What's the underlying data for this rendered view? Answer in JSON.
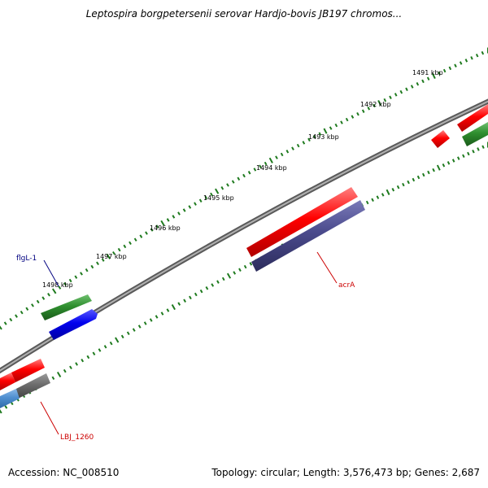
{
  "title": "Leptospira borgpetersenii serovar Hardjo-bovis JB197 chromos...",
  "footer": {
    "accession": "Accession: NC_008510",
    "summary": "Topology: circular; Length: 3,576,473 bp; Genes: 2,687"
  },
  "ruler": [
    "1491 kbp",
    "1492 kbp",
    "1493 kbp",
    "1494 kbp",
    "1495 kbp",
    "1496 kbp",
    "1497 kbp",
    "1498 kbp"
  ],
  "gene_labels": {
    "flgL": "flgL-1",
    "acrA": "acrA",
    "lbj": "LBJ_1260"
  },
  "colors": {
    "backbone": "#8a8a8a",
    "tick": "#1e7a1e",
    "gene_red": "#e80000",
    "gene_green": "#2f8f2f",
    "gene_blue": "#1a1ae6",
    "gene_purple": "#4a4a8c",
    "gene_gray": "#6b6b6b",
    "gene_lightblue": "#4f8fd0",
    "label_blue": "#000080",
    "label_red": "#cc0000"
  }
}
